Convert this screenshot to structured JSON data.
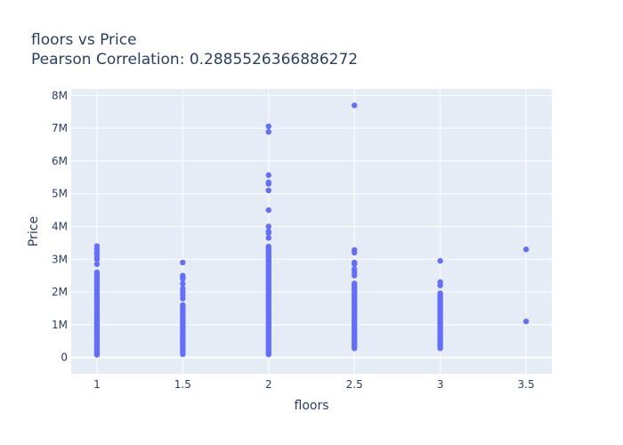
{
  "chart_data": {
    "type": "scatter",
    "title": "floors vs Price",
    "subtitle": "Pearson Correlation: 0.2885526366886272",
    "xlabel": "floors",
    "ylabel": "Price",
    "xlim": [
      0.85,
      3.65
    ],
    "ylim": [
      -500000,
      8200000
    ],
    "x_ticks": [
      {
        "value": 1,
        "label": "1"
      },
      {
        "value": 1.5,
        "label": "1.5"
      },
      {
        "value": 2,
        "label": "2"
      },
      {
        "value": 2.5,
        "label": "2.5"
      },
      {
        "value": 3,
        "label": "3"
      },
      {
        "value": 3.5,
        "label": "3.5"
      }
    ],
    "y_ticks": [
      {
        "value": 0,
        "label": "0"
      },
      {
        "value": 1000000,
        "label": "1M"
      },
      {
        "value": 2000000,
        "label": "2M"
      },
      {
        "value": 3000000,
        "label": "3M"
      },
      {
        "value": 4000000,
        "label": "4M"
      },
      {
        "value": 5000000,
        "label": "5M"
      },
      {
        "value": 6000000,
        "label": "6M"
      },
      {
        "value": 7000000,
        "label": "7M"
      },
      {
        "value": 8000000,
        "label": "8M"
      }
    ],
    "grid": true,
    "marker_color": "#636efa",
    "plot_background": "#e5ecf6",
    "groups": [
      {
        "x": 1,
        "ranges": [
          [
            80000,
            2600000
          ]
        ],
        "extra": [
          2850000,
          3000000,
          3050000,
          3150000,
          3200000,
          3300000,
          3400000
        ]
      },
      {
        "x": 1.5,
        "ranges": [
          [
            100000,
            1650000
          ]
        ],
        "extra": [
          1800000,
          1900000,
          2000000,
          2100000,
          2250000,
          2400000,
          2450000,
          2500000,
          2900000
        ]
      },
      {
        "x": 2,
        "ranges": [
          [
            90000,
            3400000
          ]
        ],
        "extra": [
          3650000,
          3800000,
          3850000,
          4000000,
          4500000,
          5100000,
          5300000,
          5350000,
          5570000,
          6890000,
          7060000
        ]
      },
      {
        "x": 2.5,
        "ranges": [
          [
            280000,
            2300000
          ]
        ],
        "extra": [
          2500000,
          2600000,
          2700000,
          2850000,
          2900000,
          3200000,
          3280000,
          7700000
        ]
      },
      {
        "x": 3,
        "ranges": [
          [
            280000,
            2000000
          ]
        ],
        "extra": [
          2200000,
          2300000,
          2950000
        ]
      },
      {
        "x": 3.5,
        "ranges": [],
        "extra": [
          1100000,
          3300000
        ]
      }
    ]
  }
}
